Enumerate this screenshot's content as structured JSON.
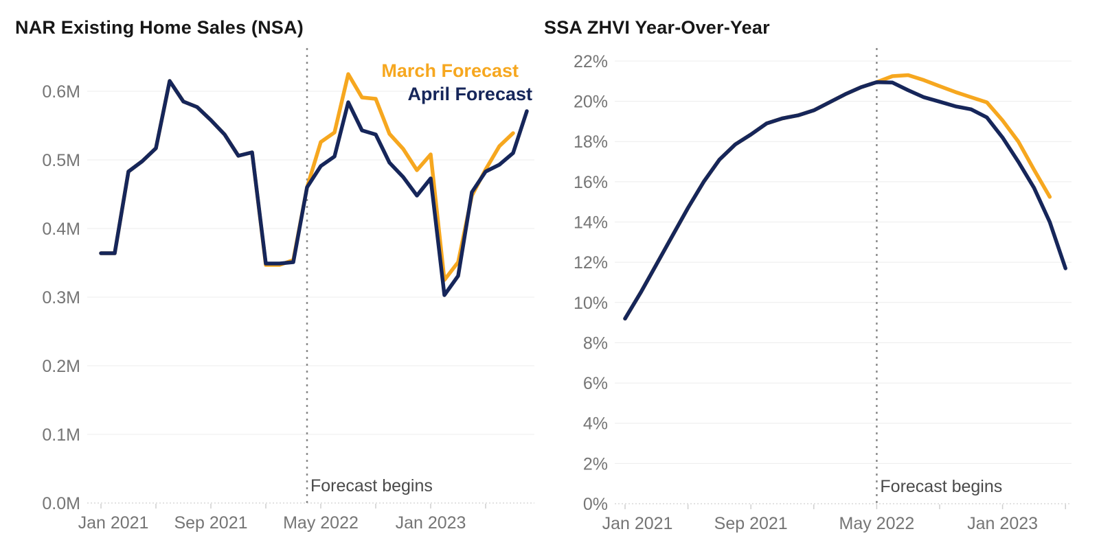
{
  "figure": {
    "background": "#ffffff",
    "accent_navy": "#16265a",
    "accent_orange": "#f6a71f"
  },
  "chart_data": [
    {
      "type": "line",
      "title": "NAR Existing Home Sales (NSA)",
      "ylabel": "",
      "xlabel": "",
      "ylim": [
        0.0,
        0.65
      ],
      "grid": "horizontal",
      "legend_position": "top-right",
      "annotation": "Forecast begins",
      "forecast_begin_index": 15,
      "x": [
        "Jan 2021",
        "Feb 2021",
        "Mar 2021",
        "Apr 2021",
        "May 2021",
        "Jun 2021",
        "Jul 2021",
        "Aug 2021",
        "Sep 2021",
        "Oct 2021",
        "Nov 2021",
        "Dec 2021",
        "Jan 2022",
        "Feb 2022",
        "Mar 2022",
        "Apr 2022",
        "May 2022",
        "Jun 2022",
        "Jul 2022",
        "Aug 2022",
        "Sep 2022",
        "Oct 2022",
        "Nov 2022",
        "Dec 2022",
        "Jan 2023",
        "Feb 2023",
        "Mar 2023",
        "Apr 2023",
        "May 2023",
        "Jun 2023",
        "Jul 2023",
        "Aug 2023"
      ],
      "x_ticks": [
        {
          "i": 0,
          "label": "Jan 2021"
        },
        {
          "i": 8,
          "label": "Sep 2021"
        },
        {
          "i": 16,
          "label": "May 2022"
        },
        {
          "i": 24,
          "label": "Jan 2023"
        }
      ],
      "y_ticks": [
        {
          "v": 0.0,
          "label": "0.0M"
        },
        {
          "v": 0.1,
          "label": "0.1M"
        },
        {
          "v": 0.2,
          "label": "0.2M"
        },
        {
          "v": 0.3,
          "label": "0.3M"
        },
        {
          "v": 0.4,
          "label": "0.4M"
        },
        {
          "v": 0.5,
          "label": "0.5M"
        },
        {
          "v": 0.6,
          "label": "0.6M"
        }
      ],
      "series": [
        {
          "name": "March Forecast",
          "color": "#f6a71f",
          "values": [
            0.364,
            0.364,
            0.483,
            0.498,
            0.517,
            0.615,
            0.585,
            0.577,
            0.558,
            0.537,
            0.506,
            0.511,
            0.347,
            0.347,
            0.354,
            0.46,
            0.526,
            0.54,
            0.625,
            0.591,
            0.589,
            0.538,
            0.516,
            0.485,
            0.508,
            0.325,
            0.351,
            0.448,
            0.486,
            0.52,
            0.539
          ]
        },
        {
          "name": "April Forecast",
          "color": "#16265a",
          "values": [
            0.364,
            0.364,
            0.483,
            0.498,
            0.517,
            0.615,
            0.585,
            0.577,
            0.558,
            0.537,
            0.506,
            0.511,
            0.349,
            0.349,
            0.351,
            0.46,
            0.491,
            0.505,
            0.584,
            0.543,
            0.537,
            0.496,
            0.475,
            0.448,
            0.473,
            0.303,
            0.331,
            0.453,
            0.483,
            0.493,
            0.51,
            0.571
          ]
        }
      ]
    },
    {
      "type": "line",
      "title": "SSA ZHVI Year-Over-Year",
      "ylabel": "",
      "xlabel": "",
      "ylim": [
        0,
        22
      ],
      "grid": "horizontal",
      "legend_position": "none",
      "annotation": "Forecast begins",
      "forecast_begin_index": 16,
      "x": [
        "Jan 2021",
        "Feb 2021",
        "Mar 2021",
        "Apr 2021",
        "May 2021",
        "Jun 2021",
        "Jul 2021",
        "Aug 2021",
        "Sep 2021",
        "Oct 2021",
        "Nov 2021",
        "Dec 2021",
        "Jan 2022",
        "Feb 2022",
        "Mar 2022",
        "Apr 2022",
        "May 2022",
        "Jun 2022",
        "Jul 2022",
        "Aug 2022",
        "Sep 2022",
        "Oct 2022",
        "Nov 2022",
        "Dec 2022",
        "Jan 2023",
        "Feb 2023",
        "Mar 2023",
        "Apr 2023",
        "May 2023"
      ],
      "x_ticks": [
        {
          "i": 0,
          "label": "Jan 2021"
        },
        {
          "i": 8,
          "label": "Sep 2021"
        },
        {
          "i": 16,
          "label": "May 2022"
        },
        {
          "i": 24,
          "label": "Jan 2023"
        }
      ],
      "y_ticks": [
        {
          "v": 0,
          "label": "0%"
        },
        {
          "v": 2,
          "label": "2%"
        },
        {
          "v": 4,
          "label": "4%"
        },
        {
          "v": 6,
          "label": "6%"
        },
        {
          "v": 8,
          "label": "8%"
        },
        {
          "v": 10,
          "label": "10%"
        },
        {
          "v": 12,
          "label": "12%"
        },
        {
          "v": 14,
          "label": "14%"
        },
        {
          "v": 16,
          "label": "16%"
        },
        {
          "v": 18,
          "label": "18%"
        },
        {
          "v": 20,
          "label": "20%"
        },
        {
          "v": 22,
          "label": "22%"
        }
      ],
      "series": [
        {
          "name": "March Forecast",
          "color": "#f6a71f",
          "values": [
            9.2,
            10.5,
            11.9,
            13.3,
            14.7,
            16.0,
            17.1,
            17.85,
            18.35,
            18.9,
            19.15,
            19.3,
            19.55,
            19.95,
            20.35,
            20.7,
            20.95,
            21.25,
            21.3,
            21.05,
            20.75,
            20.46,
            20.2,
            19.95,
            19.05,
            18.0,
            16.6,
            15.25
          ]
        },
        {
          "name": "April Forecast",
          "color": "#16265a",
          "values": [
            9.2,
            10.5,
            11.9,
            13.3,
            14.7,
            16.0,
            17.1,
            17.85,
            18.35,
            18.9,
            19.15,
            19.3,
            19.55,
            19.95,
            20.35,
            20.7,
            20.95,
            20.93,
            20.55,
            20.2,
            19.98,
            19.75,
            19.6,
            19.2,
            18.2,
            17.0,
            15.7,
            14.0,
            11.7
          ]
        }
      ]
    }
  ]
}
